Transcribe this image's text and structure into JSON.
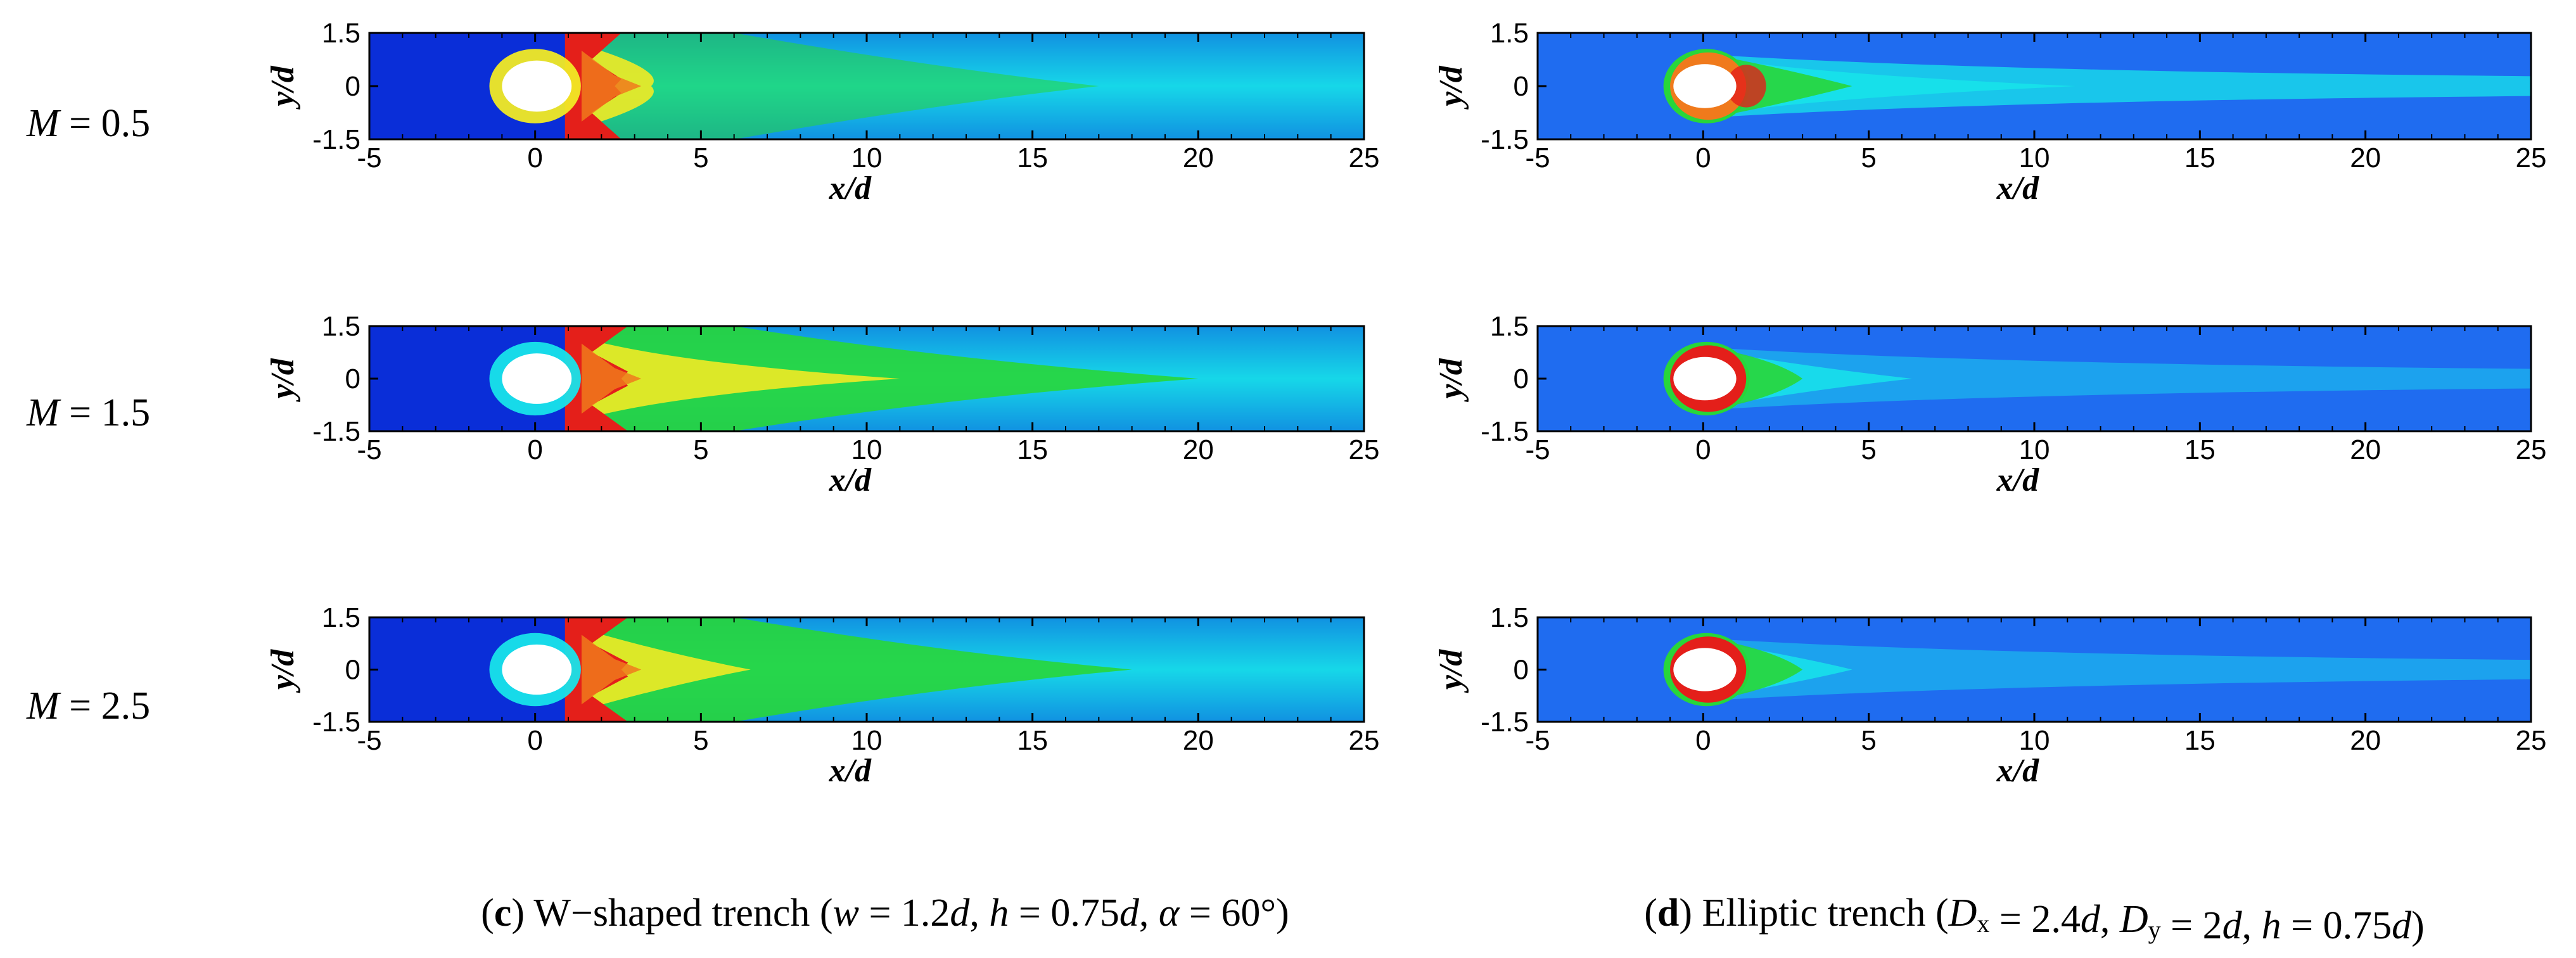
{
  "figure": {
    "row_labels": [
      {
        "var": "M",
        "rest": " = 0.5"
      },
      {
        "var": "M",
        "rest": " = 1.5"
      },
      {
        "var": "M",
        "rest": " = 2.5"
      }
    ],
    "captions": [
      {
        "letter": "c",
        "segments": [
          {
            "t": "(",
            "i": false,
            "b": false
          },
          {
            "t": "c",
            "i": false,
            "b": true
          },
          {
            "t": ") W−shaped trench (",
            "i": false,
            "b": false
          },
          {
            "t": "w",
            "i": true,
            "b": false
          },
          {
            "t": " = 1.2",
            "i": false,
            "b": false
          },
          {
            "t": "d",
            "i": true,
            "b": false
          },
          {
            "t": ", ",
            "i": false,
            "b": false
          },
          {
            "t": "h",
            "i": true,
            "b": false
          },
          {
            "t": " = 0.75",
            "i": false,
            "b": false
          },
          {
            "t": "d",
            "i": true,
            "b": false
          },
          {
            "t": ", ",
            "i": false,
            "b": false
          },
          {
            "t": "α",
            "i": true,
            "b": false
          },
          {
            "t": " = 60°)",
            "i": false,
            "b": false
          }
        ]
      },
      {
        "letter": "d",
        "segments": [
          {
            "t": "(",
            "i": false,
            "b": false
          },
          {
            "t": "d",
            "i": false,
            "b": true
          },
          {
            "t": ") Elliptic trench (",
            "i": false,
            "b": false
          },
          {
            "t": "D",
            "i": true,
            "b": false
          },
          {
            "t": "x",
            "i": false,
            "b": false,
            "sub": true
          },
          {
            "t": " = 2.4",
            "i": false,
            "b": false
          },
          {
            "t": "d",
            "i": true,
            "b": false
          },
          {
            "t": ", ",
            "i": false,
            "b": false
          },
          {
            "t": "D",
            "i": true,
            "b": false
          },
          {
            "t": "y",
            "i": false,
            "b": false,
            "sub": true
          },
          {
            "t": " = 2",
            "i": false,
            "b": false
          },
          {
            "t": "d",
            "i": true,
            "b": false
          },
          {
            "t": ", ",
            "i": false,
            "b": false
          },
          {
            "t": "h",
            "i": true,
            "b": false
          },
          {
            "t": " = 0.75",
            "i": false,
            "b": false
          },
          {
            "t": "d",
            "i": true,
            "b": false
          },
          {
            "t": ")",
            "i": false,
            "b": false
          }
        ]
      }
    ]
  },
  "chart_data": [
    {
      "type": "heatmap",
      "panel": "c",
      "blowing_ratio": 0.5,
      "title": "M = 0.5",
      "xlabel": "x/d",
      "ylabel": "y/d",
      "xlim": [
        -5,
        25
      ],
      "ylim": [
        -1.5,
        1.5
      ],
      "xticks": [
        "-5",
        "0",
        "5",
        "10",
        "15",
        "20",
        "25"
      ],
      "yticks": [
        "1.5",
        "0",
        "-1.5"
      ]
    },
    {
      "type": "heatmap",
      "panel": "c",
      "blowing_ratio": 1.5,
      "title": "M = 1.5",
      "xlabel": "x/d",
      "ylabel": "y/d",
      "xlim": [
        -5,
        25
      ],
      "ylim": [
        -1.5,
        1.5
      ],
      "xticks": [
        "-5",
        "0",
        "5",
        "10",
        "15",
        "20",
        "25"
      ],
      "yticks": [
        "1.5",
        "0",
        "-1.5"
      ]
    },
    {
      "type": "heatmap",
      "panel": "c",
      "blowing_ratio": 2.5,
      "title": "M = 2.5",
      "xlabel": "x/d",
      "ylabel": "y/d",
      "xlim": [
        -5,
        25
      ],
      "ylim": [
        -1.5,
        1.5
      ],
      "xticks": [
        "-5",
        "0",
        "5",
        "10",
        "15",
        "20",
        "25"
      ],
      "yticks": [
        "1.5",
        "0",
        "-1.5"
      ]
    },
    {
      "type": "heatmap",
      "panel": "d",
      "blowing_ratio": 0.5,
      "title": "M = 0.5",
      "xlabel": "x/d",
      "ylabel": "y/d",
      "xlim": [
        -5,
        25
      ],
      "ylim": [
        -1.5,
        1.5
      ],
      "xticks": [
        "-5",
        "0",
        "5",
        "10",
        "15",
        "20",
        "25"
      ],
      "yticks": [
        "1.5",
        "0",
        "-1.5"
      ]
    },
    {
      "type": "heatmap",
      "panel": "d",
      "blowing_ratio": 1.5,
      "title": "M = 1.5",
      "xlabel": "x/d",
      "ylabel": "y/d",
      "xlim": [
        -5,
        25
      ],
      "ylim": [
        -1.5,
        1.5
      ],
      "xticks": [
        "-5",
        "0",
        "5",
        "10",
        "15",
        "20",
        "25"
      ],
      "yticks": [
        "1.5",
        "0",
        "-1.5"
      ]
    },
    {
      "type": "heatmap",
      "panel": "d",
      "blowing_ratio": 2.5,
      "title": "M = 2.5",
      "xlabel": "x/d",
      "ylabel": "y/d",
      "xlim": [
        -5,
        25
      ],
      "ylim": [
        -1.5,
        1.5
      ],
      "xticks": [
        "-5",
        "0",
        "5",
        "10",
        "15",
        "20",
        "25"
      ],
      "yticks": [
        "1.5",
        "0",
        "-1.5"
      ]
    }
  ],
  "colormap": {
    "deep": "#0a2ed8",
    "blue": "#1f6cf0",
    "cyan": "#18e4ea",
    "green": "#28d63a",
    "yellow": "#f1ea25",
    "orange": "#f07a1c",
    "red": "#e41f1a",
    "hole": "#ffffff"
  }
}
